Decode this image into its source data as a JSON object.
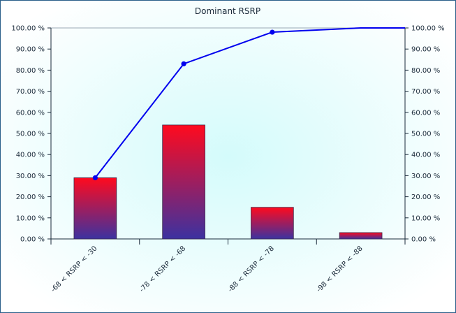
{
  "chart_data": {
    "type": "bar",
    "title": "Dominant RSRP",
    "categories": [
      "-68 < RSRP < -30",
      "-78 < RSRP < -68",
      "-88 < RSRP < -78",
      "-98 < RSRP < -88"
    ],
    "series": [
      {
        "kind": "bar",
        "values": [
          29,
          54,
          15,
          3
        ]
      },
      {
        "kind": "line",
        "values": [
          29,
          83,
          98,
          100
        ]
      }
    ],
    "y_left": {
      "ylim": [
        0,
        100
      ],
      "ticks": [
        "0.00 %",
        "10.00 %",
        "20.00 %",
        "30.00 %",
        "40.00 %",
        "50.00 %",
        "60.00 %",
        "70.00 %",
        "80.00 %",
        "90.00 %",
        "100.00 %"
      ]
    },
    "y_right": {
      "ylim": [
        0,
        100
      ],
      "ticks": [
        "0.00 %",
        "10.00 %",
        "20.00 %",
        "30.00 %",
        "40.00 %",
        "50.00 %",
        "60.00 %",
        "70.00 %",
        "80.00 %",
        "90.00 %",
        "100.00 %"
      ]
    },
    "xlabel": "",
    "ylabel": "",
    "grid": false,
    "legend": "none",
    "colors": {
      "bar_top": "#ff0a1e",
      "bar_bottom": "#3c32a0",
      "line": "#0000ee",
      "plot_bg_center": "#d4fbfb",
      "plot_bg_edge": "#ffffff",
      "border": "#2a5f8a"
    }
  }
}
